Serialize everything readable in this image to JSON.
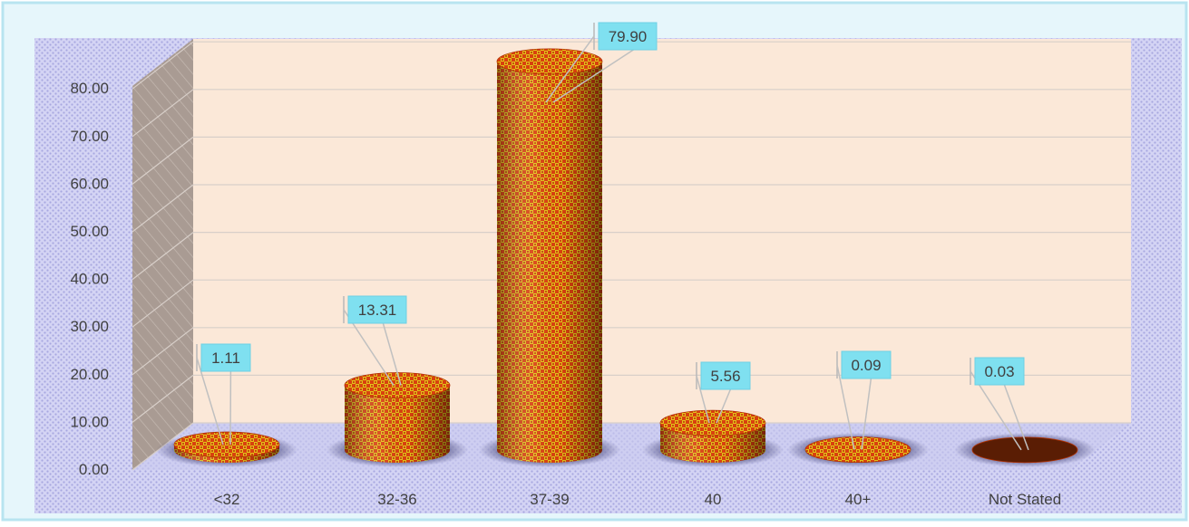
{
  "chart_data": {
    "type": "bar",
    "style": "3d-cylinder",
    "categories": [
      "<32",
      "32-36",
      "37-39",
      "40",
      "40+",
      "Not Stated"
    ],
    "values": [
      1.11,
      13.31,
      79.9,
      5.56,
      0.09,
      0.03
    ],
    "value_labels": [
      "1.11",
      "13.31",
      "79.90",
      "5.56",
      "0.09",
      "0.03"
    ],
    "title": "",
    "xlabel": "",
    "ylabel": "",
    "ylim": [
      0,
      80
    ],
    "yticks": [
      "0.00",
      "10.00",
      "20.00",
      "30.00",
      "40.00",
      "50.00",
      "60.00",
      "70.00",
      "80.00"
    ],
    "grid": true,
    "legend": "none",
    "colors": {
      "bar_main": "#e8561c",
      "bar_pattern": "#e0c400",
      "label_box": "#7fe0f0",
      "back_wall": "#fbe8d8",
      "side_wall": "#a89a92",
      "outer_bg": "#ccccf0",
      "border": "#b8e4f0"
    }
  }
}
